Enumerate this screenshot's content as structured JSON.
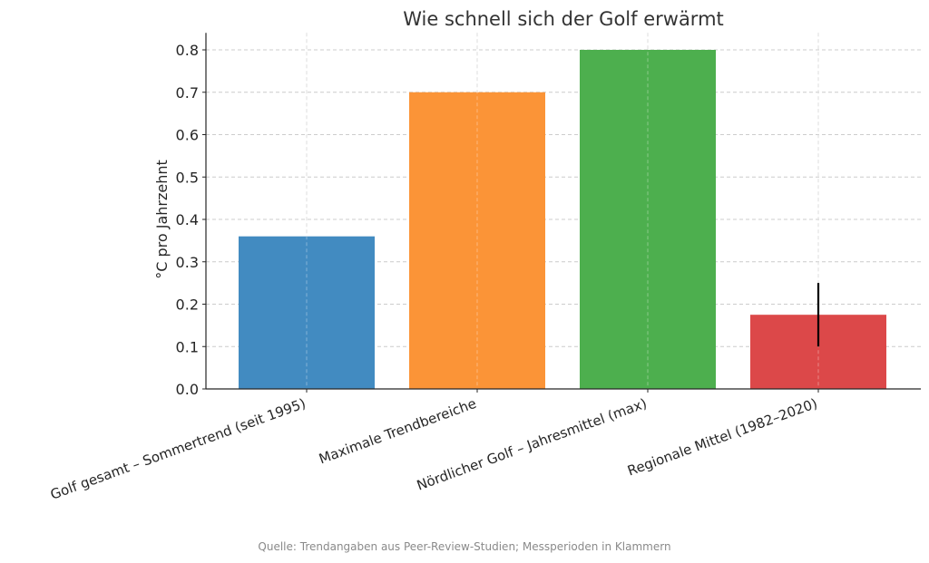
{
  "chart_data": {
    "type": "bar",
    "title": "Wie schnell sich der Golf erwärmt",
    "xlabel": "",
    "ylabel": "°C pro Jahrzehnt",
    "ylim": [
      0,
      0.84
    ],
    "yticks": [
      "0.0",
      "0.1",
      "0.2",
      "0.3",
      "0.4",
      "0.5",
      "0.6",
      "0.7",
      "0.8"
    ],
    "grid": true,
    "categories": [
      "Golf gesamt – Sommertrend (seit 1995)",
      "Maximale Trendbereiche",
      "Nördlicher Golf – Jahresmittel (max)",
      "Regionale Mittel (1982–2020)"
    ],
    "values": [
      0.36,
      0.7,
      0.8,
      0.175
    ],
    "colors": [
      "#428bc1",
      "#fb9437",
      "#4daf4e",
      "#dc4849"
    ],
    "error_bars": [
      null,
      null,
      null,
      {
        "low": 0.1,
        "high": 0.25
      }
    ]
  },
  "caption": "Quelle: Trendangaben aus Peer-Review-Studien; Messperioden in Klammern"
}
